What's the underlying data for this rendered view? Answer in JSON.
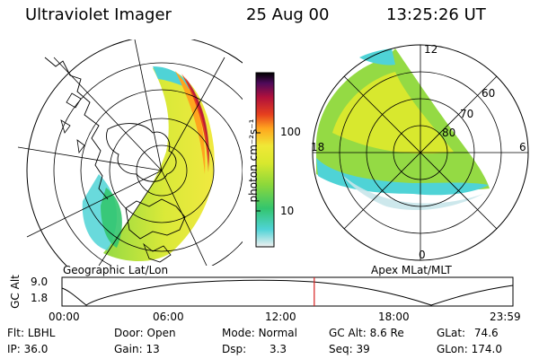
{
  "header": {
    "instrument": "Ultraviolet Imager",
    "date": "25 Aug 00",
    "time": "13:25:26 UT"
  },
  "left_panel": {
    "label": "Geographic Lat/Lon"
  },
  "right_panel": {
    "label": "Apex MLat/MLT",
    "mlt_labels": [
      "12",
      "18",
      "6",
      "0"
    ],
    "lat_labels": [
      "60",
      "70",
      "80"
    ]
  },
  "colorbar": {
    "unit_label": "photon cm⁻²s⁻¹",
    "tick_labels": [
      "100",
      "10"
    ],
    "colors": [
      "#f0f0f0",
      "#4fd3d6",
      "#33c56e",
      "#8ed83a",
      "#d8e82e",
      "#f0e836",
      "#ffa51e",
      "#e6401e",
      "#b0103c",
      "#4e0a5a",
      "#000000"
    ]
  },
  "timeline": {
    "ylabel": "GC Alt",
    "y_ticks": [
      "9.0",
      "1.8"
    ],
    "x_ticks": [
      "00:00",
      "06:00",
      "12:00",
      "18:00",
      "23:59"
    ],
    "current_fraction": 0.5594
  },
  "info": {
    "row1": [
      {
        "label": "Flt:",
        "value": "LBHL"
      },
      {
        "label": "Door:",
        "value": "Open"
      },
      {
        "label": "Mode:",
        "value": "Normal"
      },
      {
        "label": "GC Alt:",
        "value": "8.6 Re"
      },
      {
        "label": "GLat:",
        "value": "74.6"
      }
    ],
    "row2": [
      {
        "label": "IP:",
        "value": "36.0"
      },
      {
        "label": "Gain:",
        "value": "13"
      },
      {
        "label": "Dsp:",
        "value": "3.3"
      },
      {
        "label": "Seq:",
        "value": "39"
      },
      {
        "label": "GLon:",
        "value": "174.0"
      }
    ]
  }
}
